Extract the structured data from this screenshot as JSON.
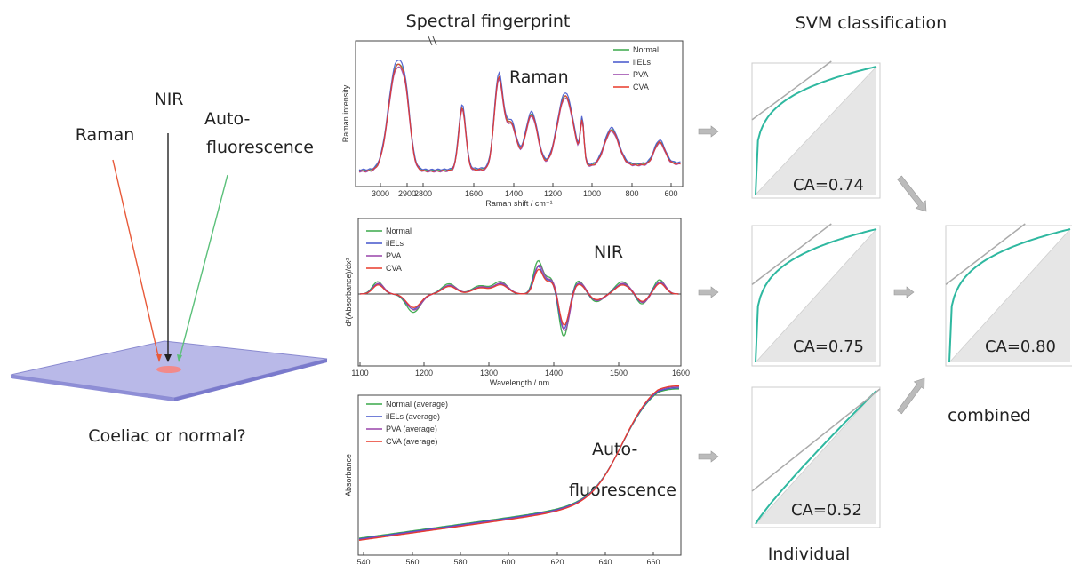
{
  "headers": {
    "spectral": "Spectral fingerprint",
    "svm": "SVM classification"
  },
  "left": {
    "beams": [
      "Raman",
      "NIR",
      "Auto-",
      "fluorescence"
    ],
    "question": "Coeliac or normal?"
  },
  "colors": {
    "normal": "#3aa84a",
    "ilels": "#4455cc",
    "pva": "#9944aa",
    "cva": "#e83a2a",
    "roc_curve": "#2fb8a0",
    "arrow": "#bbbbbb",
    "slide": "#b9b9e8"
  },
  "chart_data": [
    {
      "type": "line",
      "name": "Raman",
      "panel_label": "Raman",
      "xlabel": "Raman shift / cm⁻¹",
      "ylabel": "Raman intensity",
      "x_ticks": [
        "3000",
        "2900",
        "2800",
        "1600",
        "1400",
        "1200",
        "1000",
        "800",
        "600"
      ],
      "series": [
        {
          "name": "Normal",
          "color": "normal"
        },
        {
          "name": "iIELs",
          "color": "ilels"
        },
        {
          "name": "PVA",
          "color": "pva"
        },
        {
          "name": "CVA",
          "color": "cva"
        }
      ]
    },
    {
      "type": "line",
      "name": "NIR",
      "panel_label": "NIR",
      "xlabel": "Wavelength / nm",
      "ylabel": "d²(Absorbance)/dx²",
      "x_ticks": [
        "1100",
        "1200",
        "1300",
        "1400",
        "1500",
        "1600"
      ],
      "series": [
        {
          "name": "Normal",
          "color": "normal"
        },
        {
          "name": "iIELs",
          "color": "ilels"
        },
        {
          "name": "PVA",
          "color": "pva"
        },
        {
          "name": "CVA",
          "color": "cva"
        }
      ]
    },
    {
      "type": "line",
      "name": "Autofluorescence",
      "panel_label": [
        "Auto-",
        "fluorescence"
      ],
      "xlabel": "Wavelength / nm",
      "ylabel": "Absorbance",
      "x_ticks": [
        "540",
        "560",
        "580",
        "600",
        "620",
        "640",
        "660"
      ],
      "series": [
        {
          "name": "Normal (average)",
          "color": "normal"
        },
        {
          "name": "iIELs (average)",
          "color": "ilels"
        },
        {
          "name": "PVA (average)",
          "color": "pva"
        },
        {
          "name": "CVA (average)",
          "color": "cva"
        }
      ]
    },
    {
      "type": "line",
      "name": "ROC Raman",
      "label": "CA=0.74",
      "ca": 0.74
    },
    {
      "type": "line",
      "name": "ROC NIR",
      "label": "CA=0.75",
      "ca": 0.75
    },
    {
      "type": "line",
      "name": "ROC Autofluorescence",
      "label": "CA=0.52",
      "ca": 0.52
    },
    {
      "type": "line",
      "name": "ROC combined",
      "label": "CA=0.80",
      "ca": 0.8
    }
  ],
  "captions": {
    "individual": "Individual",
    "combined": "combined"
  }
}
